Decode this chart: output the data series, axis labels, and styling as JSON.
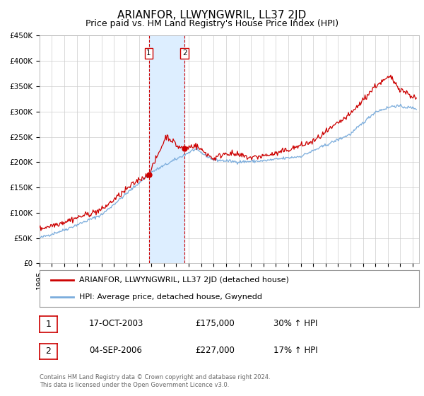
{
  "title": "ARIANFOR, LLWYNGWRIL, LL37 2JD",
  "subtitle": "Price paid vs. HM Land Registry's House Price Index (HPI)",
  "ylim": [
    0,
    450000
  ],
  "yticks": [
    0,
    50000,
    100000,
    150000,
    200000,
    250000,
    300000,
    350000,
    400000,
    450000
  ],
  "ytick_labels": [
    "£0",
    "£50K",
    "£100K",
    "£150K",
    "£200K",
    "£250K",
    "£300K",
    "£350K",
    "£400K",
    "£450K"
  ],
  "xlim_start": 1995.0,
  "xlim_end": 2025.5,
  "xticks": [
    1995,
    1996,
    1997,
    1998,
    1999,
    2000,
    2001,
    2002,
    2003,
    2004,
    2005,
    2006,
    2007,
    2008,
    2009,
    2010,
    2011,
    2012,
    2013,
    2014,
    2015,
    2016,
    2017,
    2018,
    2019,
    2020,
    2021,
    2022,
    2023,
    2024,
    2025
  ],
  "sale1_x": 2003.79,
  "sale1_y": 175000,
  "sale2_x": 2006.67,
  "sale2_y": 227000,
  "red_line_color": "#cc0000",
  "blue_line_color": "#7aacdc",
  "highlight_color": "#ddeeff",
  "vline_color": "#cc0000",
  "background_color": "#ffffff",
  "grid_color": "#cccccc",
  "legend_label_red": "ARIANFOR, LLWYNGWRIL, LL37 2JD (detached house)",
  "legend_label_blue": "HPI: Average price, detached house, Gwynedd",
  "table_row1": [
    "1",
    "17-OCT-2003",
    "£175,000",
    "30% ↑ HPI"
  ],
  "table_row2": [
    "2",
    "04-SEP-2006",
    "£227,000",
    "17% ↑ HPI"
  ],
  "footnote": "Contains HM Land Registry data © Crown copyright and database right 2024.\nThis data is licensed under the Open Government Licence v3.0.",
  "title_fontsize": 11,
  "subtitle_fontsize": 9,
  "tick_fontsize": 7.5
}
